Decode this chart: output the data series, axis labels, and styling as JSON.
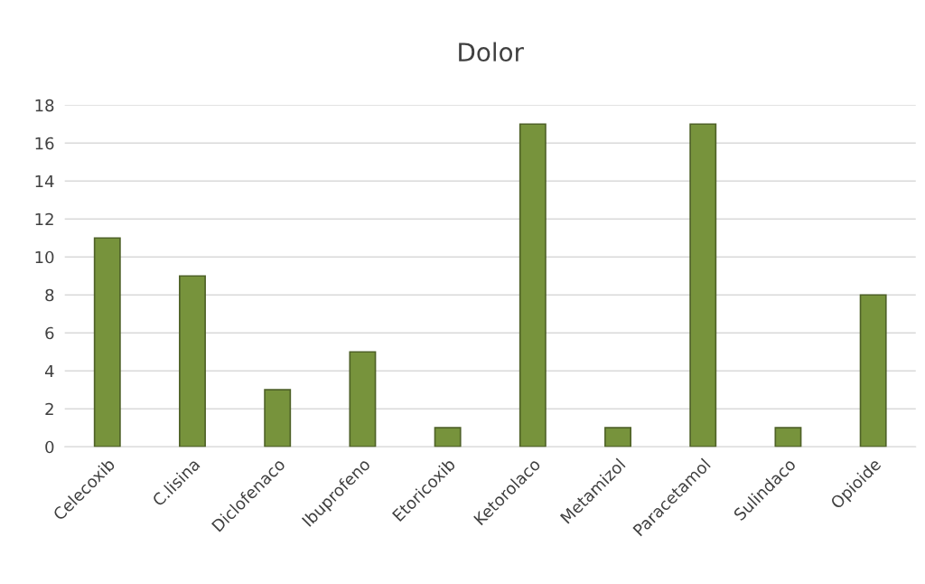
{
  "chart_data": {
    "type": "bar",
    "title": "Dolor",
    "categories": [
      "Celecoxib",
      "C.lisina",
      "Diclofenaco",
      "Ibuprofeno",
      "Etoricoxib",
      "Ketorolaco",
      "Metamizol",
      "Paracetamol",
      "Sulindaco",
      "Opioide"
    ],
    "values": [
      11,
      9,
      3,
      5,
      1,
      17,
      1,
      17,
      1,
      8
    ],
    "color": "#77933c",
    "ylim": [
      0,
      18
    ],
    "yticks": [
      0,
      2,
      4,
      6,
      8,
      10,
      12,
      14,
      16,
      18
    ],
    "grid": "y"
  }
}
